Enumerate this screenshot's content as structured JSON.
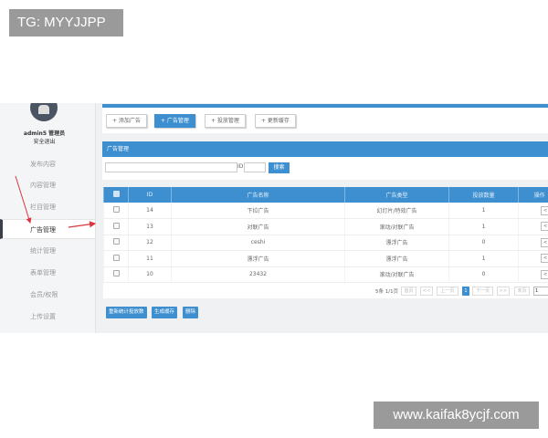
{
  "watermarks": {
    "top_left": "TG: MYYJJPP",
    "bottom_right": "www.kaifak8ycjf.com"
  },
  "user": {
    "name": "admin5 管理员",
    "logout": "安全退出"
  },
  "sidebar": {
    "items": [
      {
        "label": "发布内容"
      },
      {
        "label": "内容管理"
      },
      {
        "label": "栏目管理"
      },
      {
        "label": "广告管理",
        "active": true
      },
      {
        "label": "统计管理"
      },
      {
        "label": "表单管理"
      },
      {
        "label": "会员/权限"
      },
      {
        "label": "上传设置"
      }
    ]
  },
  "toolbar": {
    "buttons": [
      {
        "label": "+ 添加广告"
      },
      {
        "label": "+ 广告管理",
        "active": true
      },
      {
        "label": "+ 投放管理"
      },
      {
        "label": "+ 更新缓存"
      }
    ]
  },
  "panel": {
    "title": "广告管理"
  },
  "search": {
    "keyword_value": "",
    "id_label": "ID",
    "id_value": "",
    "button": "搜索"
  },
  "table": {
    "headers": [
      "",
      "ID",
      "广告名称",
      "广告类型",
      "投放数量",
      "操作"
    ],
    "rows": [
      {
        "id": "14",
        "name": "下拉广告",
        "type": "幻灯片/特效广告",
        "count": "1",
        "op": "<"
      },
      {
        "id": "13",
        "name": "对联广告",
        "type": "滚动/对联广告",
        "count": "1",
        "op": "<"
      },
      {
        "id": "12",
        "name": "ceshi",
        "type": "漂浮广告",
        "count": "0",
        "op": "<"
      },
      {
        "id": "11",
        "name": "漂浮广告",
        "type": "漂浮广告",
        "count": "1",
        "op": "<"
      },
      {
        "id": "10",
        "name": "23432",
        "type": "滚动/对联广告",
        "count": "0",
        "op": "<"
      }
    ]
  },
  "pager": {
    "summary": "5条 1/1页",
    "first": "首页",
    "prev_group": "<<",
    "prev": "上一页",
    "current": "1",
    "next": "下一页",
    "next_group": ">>",
    "last": "末页",
    "jump_value": "1"
  },
  "bottom_buttons": [
    "重新统计投放数",
    "生成缓存",
    "删除"
  ],
  "colors": {
    "accent": "#3d8fd0",
    "annotation_arrow": "#d9363e"
  }
}
